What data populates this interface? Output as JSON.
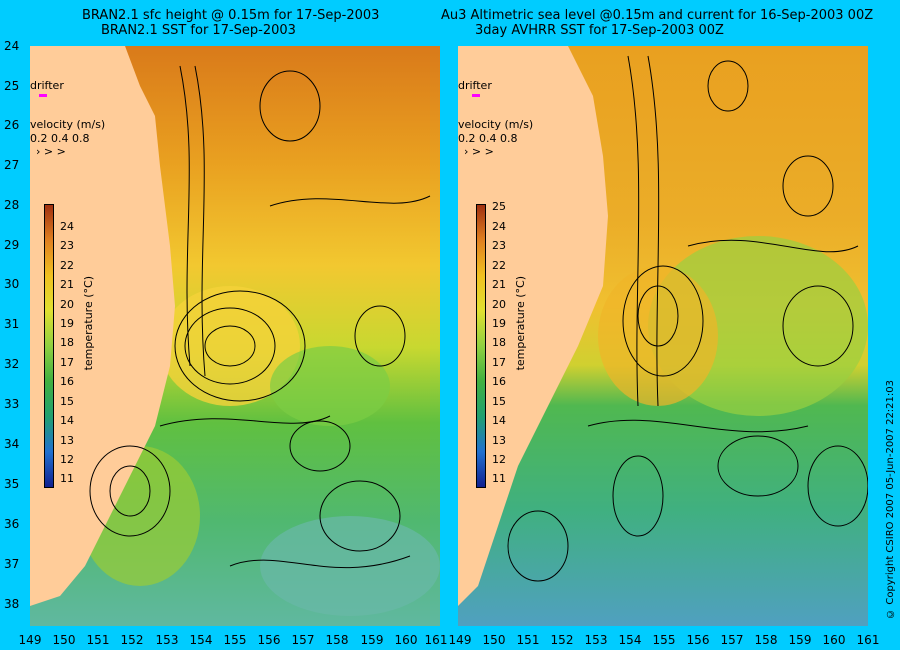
{
  "left_title": {
    "line1": "BRAN2.1 sfc height @ 0.15m for 17-Sep-2003",
    "line2": "BRAN2.1 SST for 17-Sep-2003"
  },
  "right_title": {
    "line1": "Au3 Altimetric sea level  @0.15m and current for 16-Sep-2003 00Z",
    "line2": "3day AVHRR SST for 17-Sep-2003 00Z"
  },
  "y_ticks": [
    "24",
    "25",
    "26",
    "27",
    "28",
    "29",
    "30",
    "31",
    "32",
    "33",
    "34",
    "35",
    "36",
    "37",
    "38"
  ],
  "x_ticks": [
    "149",
    "150",
    "151",
    "152",
    "153",
    "154",
    "155",
    "156",
    "157",
    "158",
    "159",
    "160",
    "161"
  ],
  "legend": {
    "drifter": "drifter",
    "velocity_title": "velocity (m/s)",
    "velocity_values": "0.2 0.4 0.8"
  },
  "colorbar_left": {
    "title": "temperature (°C)",
    "ticks": [
      "24",
      "23",
      "22",
      "21",
      "20",
      "19",
      "18",
      "17",
      "16",
      "15",
      "14",
      "13",
      "12",
      "11"
    ]
  },
  "colorbar_right": {
    "title": "temperature (°C)",
    "ticks": [
      "25",
      "24",
      "23",
      "22",
      "21",
      "20",
      "19",
      "18",
      "17",
      "16",
      "15",
      "14",
      "13",
      "12",
      "11"
    ]
  },
  "copyright": "© Copyright CSIRO 2007   05-Jun-2007 22:21:03",
  "colors": {
    "background": "#00ccff",
    "land": "#ffcc99",
    "drifter": "#ff00ff"
  }
}
